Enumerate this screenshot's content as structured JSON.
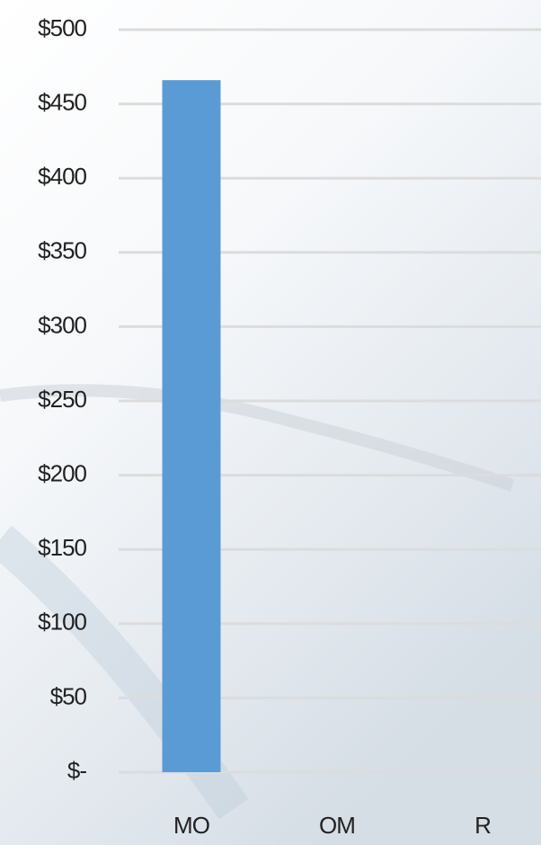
{
  "chart_data": {
    "type": "bar",
    "categories": [
      "MO",
      "OM",
      "R"
    ],
    "values": [
      466,
      0,
      0
    ],
    "color": "#5b9bd5",
    "ylim": [
      0,
      500
    ],
    "yticks": [
      {
        "value": 0,
        "label": "$-"
      },
      {
        "value": 50,
        "label": "$50"
      },
      {
        "value": 100,
        "label": "$100"
      },
      {
        "value": 150,
        "label": "$150"
      },
      {
        "value": 200,
        "label": "$200"
      },
      {
        "value": 250,
        "label": "$250"
      },
      {
        "value": 300,
        "label": "$300"
      },
      {
        "value": 350,
        "label": "$350"
      },
      {
        "value": 400,
        "label": "$400"
      },
      {
        "value": 450,
        "label": "$450"
      },
      {
        "value": 500,
        "label": "$500"
      }
    ],
    "grid": true
  }
}
